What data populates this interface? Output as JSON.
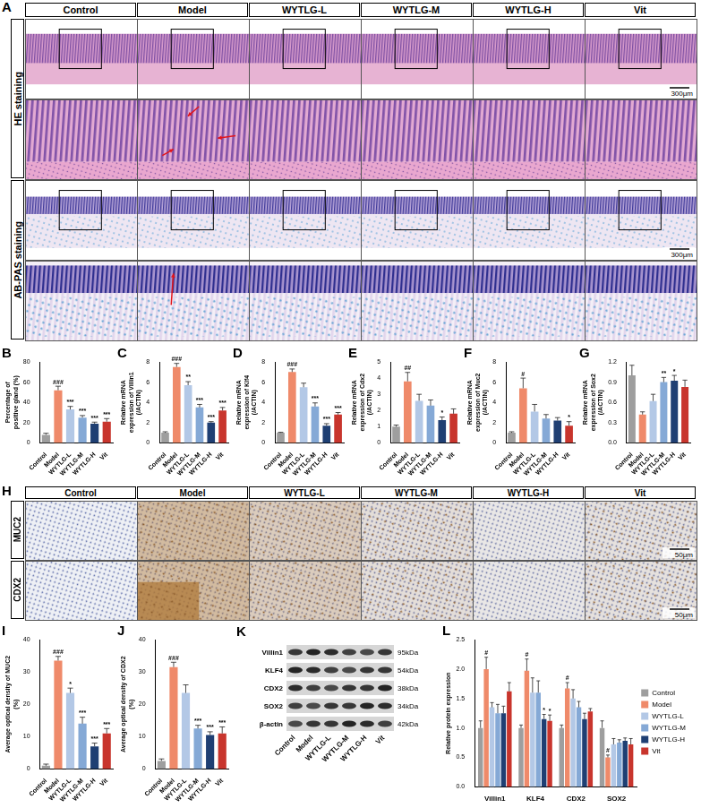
{
  "panels": {
    "A": {
      "letter": "A",
      "columns": [
        "Control",
        "Model",
        "WYTLG-L",
        "WYTLG-M",
        "WYTLG-H",
        "Vit"
      ],
      "rows": [
        "HE staining",
        "AB-PAS staining"
      ],
      "scale_bar": "300μm"
    },
    "H": {
      "letter": "H",
      "columns": [
        "Control",
        "Model",
        "WYTLG-L",
        "WYTLG-M",
        "WYTLG-H",
        "Vit"
      ],
      "rows": [
        "MUC2",
        "CDX2"
      ],
      "scale_bar": "50μm"
    },
    "K": {
      "letter": "K",
      "lanes": [
        "Control",
        "Model",
        "WYTLG-L",
        "WYTLG-M",
        "WYTLG-H",
        "Vit"
      ],
      "bands": [
        {
          "name": "Villin1",
          "size": "95kDa"
        },
        {
          "name": "KLF4",
          "size": "54kDa"
        },
        {
          "name": "CDX2",
          "size": "38kDa"
        },
        {
          "name": "SOX2",
          "size": "34kDa"
        },
        {
          "name": "β-actin",
          "size": "42kDa"
        }
      ]
    }
  },
  "chart_data": [
    {
      "letter": "B",
      "type": "bar",
      "y_label": "Percentage of positive gland (%)",
      "categories": [
        "Control",
        "Model",
        "WYTLG-L",
        "WYTLG-M",
        "WYTLG-H",
        "Vit"
      ],
      "values": [
        8,
        52,
        33,
        25,
        19,
        21
      ],
      "errors": [
        1.5,
        4,
        3,
        2,
        1.5,
        3
      ],
      "significance": [
        "",
        "###",
        "***",
        "***",
        "***",
        "***"
      ],
      "colors": [
        "#9e9e9e",
        "#ef8a6a",
        "#b3c8e6",
        "#85a9d6",
        "#1f3f73",
        "#c8352d"
      ],
      "ylim": [
        0,
        80
      ],
      "yticks": [
        0,
        20,
        40,
        60,
        80
      ],
      "grid": false
    },
    {
      "letter": "C",
      "type": "bar",
      "y_label": "Relative mRNA expression of Villin1 (/ACTIN)",
      "categories": [
        "Control",
        "Model",
        "WYTLG-L",
        "WYTLG-M",
        "WYTLG-H",
        "Vit"
      ],
      "values": [
        1,
        7.5,
        5.7,
        3.5,
        2.0,
        3.2
      ],
      "errors": [
        0.1,
        0.35,
        0.35,
        0.3,
        0.1,
        0.3
      ],
      "significance": [
        "",
        "###",
        "**",
        "***",
        "***",
        "***"
      ],
      "colors": [
        "#9e9e9e",
        "#ef8a6a",
        "#b3c8e6",
        "#85a9d6",
        "#1f3f73",
        "#c8352d"
      ],
      "ylim": [
        0,
        8
      ],
      "yticks": [
        0,
        2,
        4,
        6,
        8
      ],
      "grid": false
    },
    {
      "letter": "D",
      "type": "bar",
      "y_label": "Relative mRNA expression of Klf4 (/ACTIN)",
      "categories": [
        "Control",
        "Model",
        "WYTLG-L",
        "WYTLG-M",
        "WYTLG-H",
        "Vit"
      ],
      "values": [
        1,
        7,
        5.5,
        3.6,
        1.7,
        2.8
      ],
      "errors": [
        0.05,
        0.3,
        0.4,
        0.35,
        0.2,
        0.2
      ],
      "significance": [
        "",
        "###",
        "",
        "***",
        "***",
        "***"
      ],
      "colors": [
        "#9e9e9e",
        "#ef8a6a",
        "#b3c8e6",
        "#85a9d6",
        "#1f3f73",
        "#c8352d"
      ],
      "ylim": [
        0,
        8
      ],
      "yticks": [
        0,
        2,
        4,
        6,
        8
      ],
      "grid": false
    },
    {
      "letter": "E",
      "type": "bar",
      "y_label": "Relative mRNA expression of Cdx2 (/ACTIN)",
      "categories": [
        "Control",
        "Model",
        "WYTLG-L",
        "WYTLG-M",
        "WYTLG-H",
        "Vit"
      ],
      "values": [
        1,
        3.8,
        2.6,
        2.3,
        1.4,
        1.8
      ],
      "errors": [
        0.1,
        0.55,
        0.4,
        0.35,
        0.2,
        0.3
      ],
      "significance": [
        "",
        "##",
        "",
        "",
        "*",
        ""
      ],
      "colors": [
        "#9e9e9e",
        "#ef8a6a",
        "#b3c8e6",
        "#85a9d6",
        "#1f3f73",
        "#c8352d"
      ],
      "ylim": [
        0,
        5
      ],
      "yticks": [
        0,
        1,
        2,
        3,
        4,
        5
      ],
      "grid": false
    },
    {
      "letter": "F",
      "type": "bar",
      "y_label": "Relative mRNA expression of Muc2 (/ACTIN)",
      "categories": [
        "Control",
        "Model",
        "WYTLG-L",
        "WYTLG-M",
        "WYTLG-H",
        "Vit"
      ],
      "values": [
        1,
        5.4,
        3.1,
        2.4,
        2.2,
        1.7
      ],
      "errors": [
        0.1,
        1.0,
        0.7,
        0.4,
        0.3,
        0.4
      ],
      "significance": [
        "",
        "#",
        "",
        "",
        "",
        "*"
      ],
      "colors": [
        "#9e9e9e",
        "#ef8a6a",
        "#b3c8e6",
        "#85a9d6",
        "#1f3f73",
        "#c8352d"
      ],
      "ylim": [
        0,
        8
      ],
      "yticks": [
        0,
        2,
        4,
        6,
        8
      ],
      "grid": false
    },
    {
      "letter": "G",
      "type": "bar",
      "y_label": "Relative mRNA expression of Sox2 (/ACTIN)",
      "categories": [
        "Control",
        "Model",
        "WYTLG-L",
        "WYTLG-M",
        "WYTLG-H",
        "Vit"
      ],
      "values": [
        1.0,
        0.42,
        0.62,
        0.9,
        0.92,
        0.83
      ],
      "errors": [
        0.15,
        0.04,
        0.1,
        0.07,
        0.08,
        0.1
      ],
      "significance": [
        "",
        "",
        "",
        "**",
        "*",
        ""
      ],
      "colors": [
        "#9e9e9e",
        "#ef8a6a",
        "#b3c8e6",
        "#85a9d6",
        "#1f3f73",
        "#c8352d"
      ],
      "ylim": [
        0,
        1.2
      ],
      "yticks": [
        {
          "value": 0,
          "label": "0.0"
        },
        {
          "value": 0.3,
          "label": "0.3"
        },
        {
          "value": 0.6,
          "label": "0.6"
        },
        {
          "value": 0.9,
          "label": "0.9"
        },
        {
          "value": 1.2,
          "label": "1.2"
        }
      ],
      "grid": false
    },
    {
      "letter": "I",
      "type": "bar",
      "y_label": "Average optical density of MUC2 (%)",
      "categories": [
        "Control",
        "Model",
        "WYTLG-L",
        "WYTLG-M",
        "WYTLG-H",
        "Vit"
      ],
      "values": [
        1,
        33.5,
        23.5,
        14,
        7,
        11
      ],
      "errors": [
        0.5,
        1.3,
        1.5,
        2,
        1,
        1.5
      ],
      "significance": [
        "",
        "###",
        "*",
        "***",
        "***",
        "***"
      ],
      "colors": [
        "#9e9e9e",
        "#ef8a6a",
        "#b3c8e6",
        "#85a9d6",
        "#1f3f73",
        "#c8352d"
      ],
      "ylim": [
        0,
        40
      ],
      "yticks": [
        0,
        10,
        20,
        30,
        40
      ],
      "grid": false
    },
    {
      "letter": "J",
      "type": "bar",
      "y_label": "Average optical density of CDX2 (%)",
      "categories": [
        "Control",
        "Model",
        "WYTLG-L",
        "WYTLG-M",
        "WYTLG-H",
        "Vit"
      ],
      "values": [
        2.5,
        31.5,
        23.5,
        12.5,
        10.5,
        11
      ],
      "errors": [
        0.6,
        1.5,
        2.5,
        1,
        1,
        2
      ],
      "significance": [
        "",
        "###",
        "",
        "***",
        "***",
        "***"
      ],
      "colors": [
        "#9e9e9e",
        "#ef8a6a",
        "#b3c8e6",
        "#85a9d6",
        "#1f3f73",
        "#c8352d"
      ],
      "ylim": [
        0,
        40
      ],
      "yticks": [
        0,
        10,
        20,
        30,
        40
      ],
      "grid": false
    },
    {
      "letter": "L",
      "type": "bar",
      "y_label": "Relative protein expression",
      "categories": [
        "Villin1",
        "KLF4",
        "CDX2",
        "SOX2"
      ],
      "series": [
        {
          "name": "Control",
          "color": "#9e9e9e",
          "values": [
            1,
            1,
            1,
            1
          ],
          "errors": [
            0.12,
            0.05,
            0.05,
            0.12
          ],
          "significance": [
            "",
            "",
            "",
            ""
          ]
        },
        {
          "name": "Model",
          "color": "#ef8a6a",
          "values": [
            2.0,
            1.97,
            1.67,
            0.5
          ],
          "errors": [
            0.2,
            0.2,
            0.1,
            0.04
          ],
          "significance": [
            "#",
            "#",
            "#",
            "#"
          ]
        },
        {
          "name": "WYTLG-L",
          "color": "#b3c8e6",
          "values": [
            1.35,
            1.6,
            1.5,
            0.72
          ],
          "errors": [
            0.08,
            0.25,
            0.15,
            0.1
          ],
          "significance": [
            "",
            "",
            "",
            ""
          ]
        },
        {
          "name": "WYTLG-M",
          "color": "#85a9d6",
          "values": [
            1.25,
            1.6,
            1.35,
            0.75
          ],
          "errors": [
            0.15,
            0.2,
            0.1,
            0.05
          ],
          "significance": [
            "",
            "",
            "",
            ""
          ]
        },
        {
          "name": "WYTLG-H",
          "color": "#1f3f73",
          "values": [
            1.25,
            1.15,
            1.15,
            0.78
          ],
          "errors": [
            0.12,
            0.08,
            0.1,
            0.05
          ],
          "significance": [
            "",
            "*",
            "",
            ""
          ]
        },
        {
          "name": "Vit",
          "color": "#c8352d",
          "values": [
            1.62,
            1.12,
            1.28,
            0.72
          ],
          "errors": [
            0.15,
            0.1,
            0.05,
            0.1
          ],
          "significance": [
            "",
            "*",
            "",
            ""
          ]
        }
      ],
      "ylim": [
        0,
        2.5
      ],
      "yticks": [
        {
          "value": 0,
          "label": "0.0"
        },
        {
          "value": 0.5,
          "label": "0.5"
        },
        {
          "value": 1,
          "label": "1.0"
        },
        {
          "value": 1.5,
          "label": "1.5"
        },
        {
          "value": 2,
          "label": "2.0"
        },
        {
          "value": 2.5,
          "label": "2.5"
        }
      ],
      "grid": false,
      "legend": "right"
    }
  ]
}
